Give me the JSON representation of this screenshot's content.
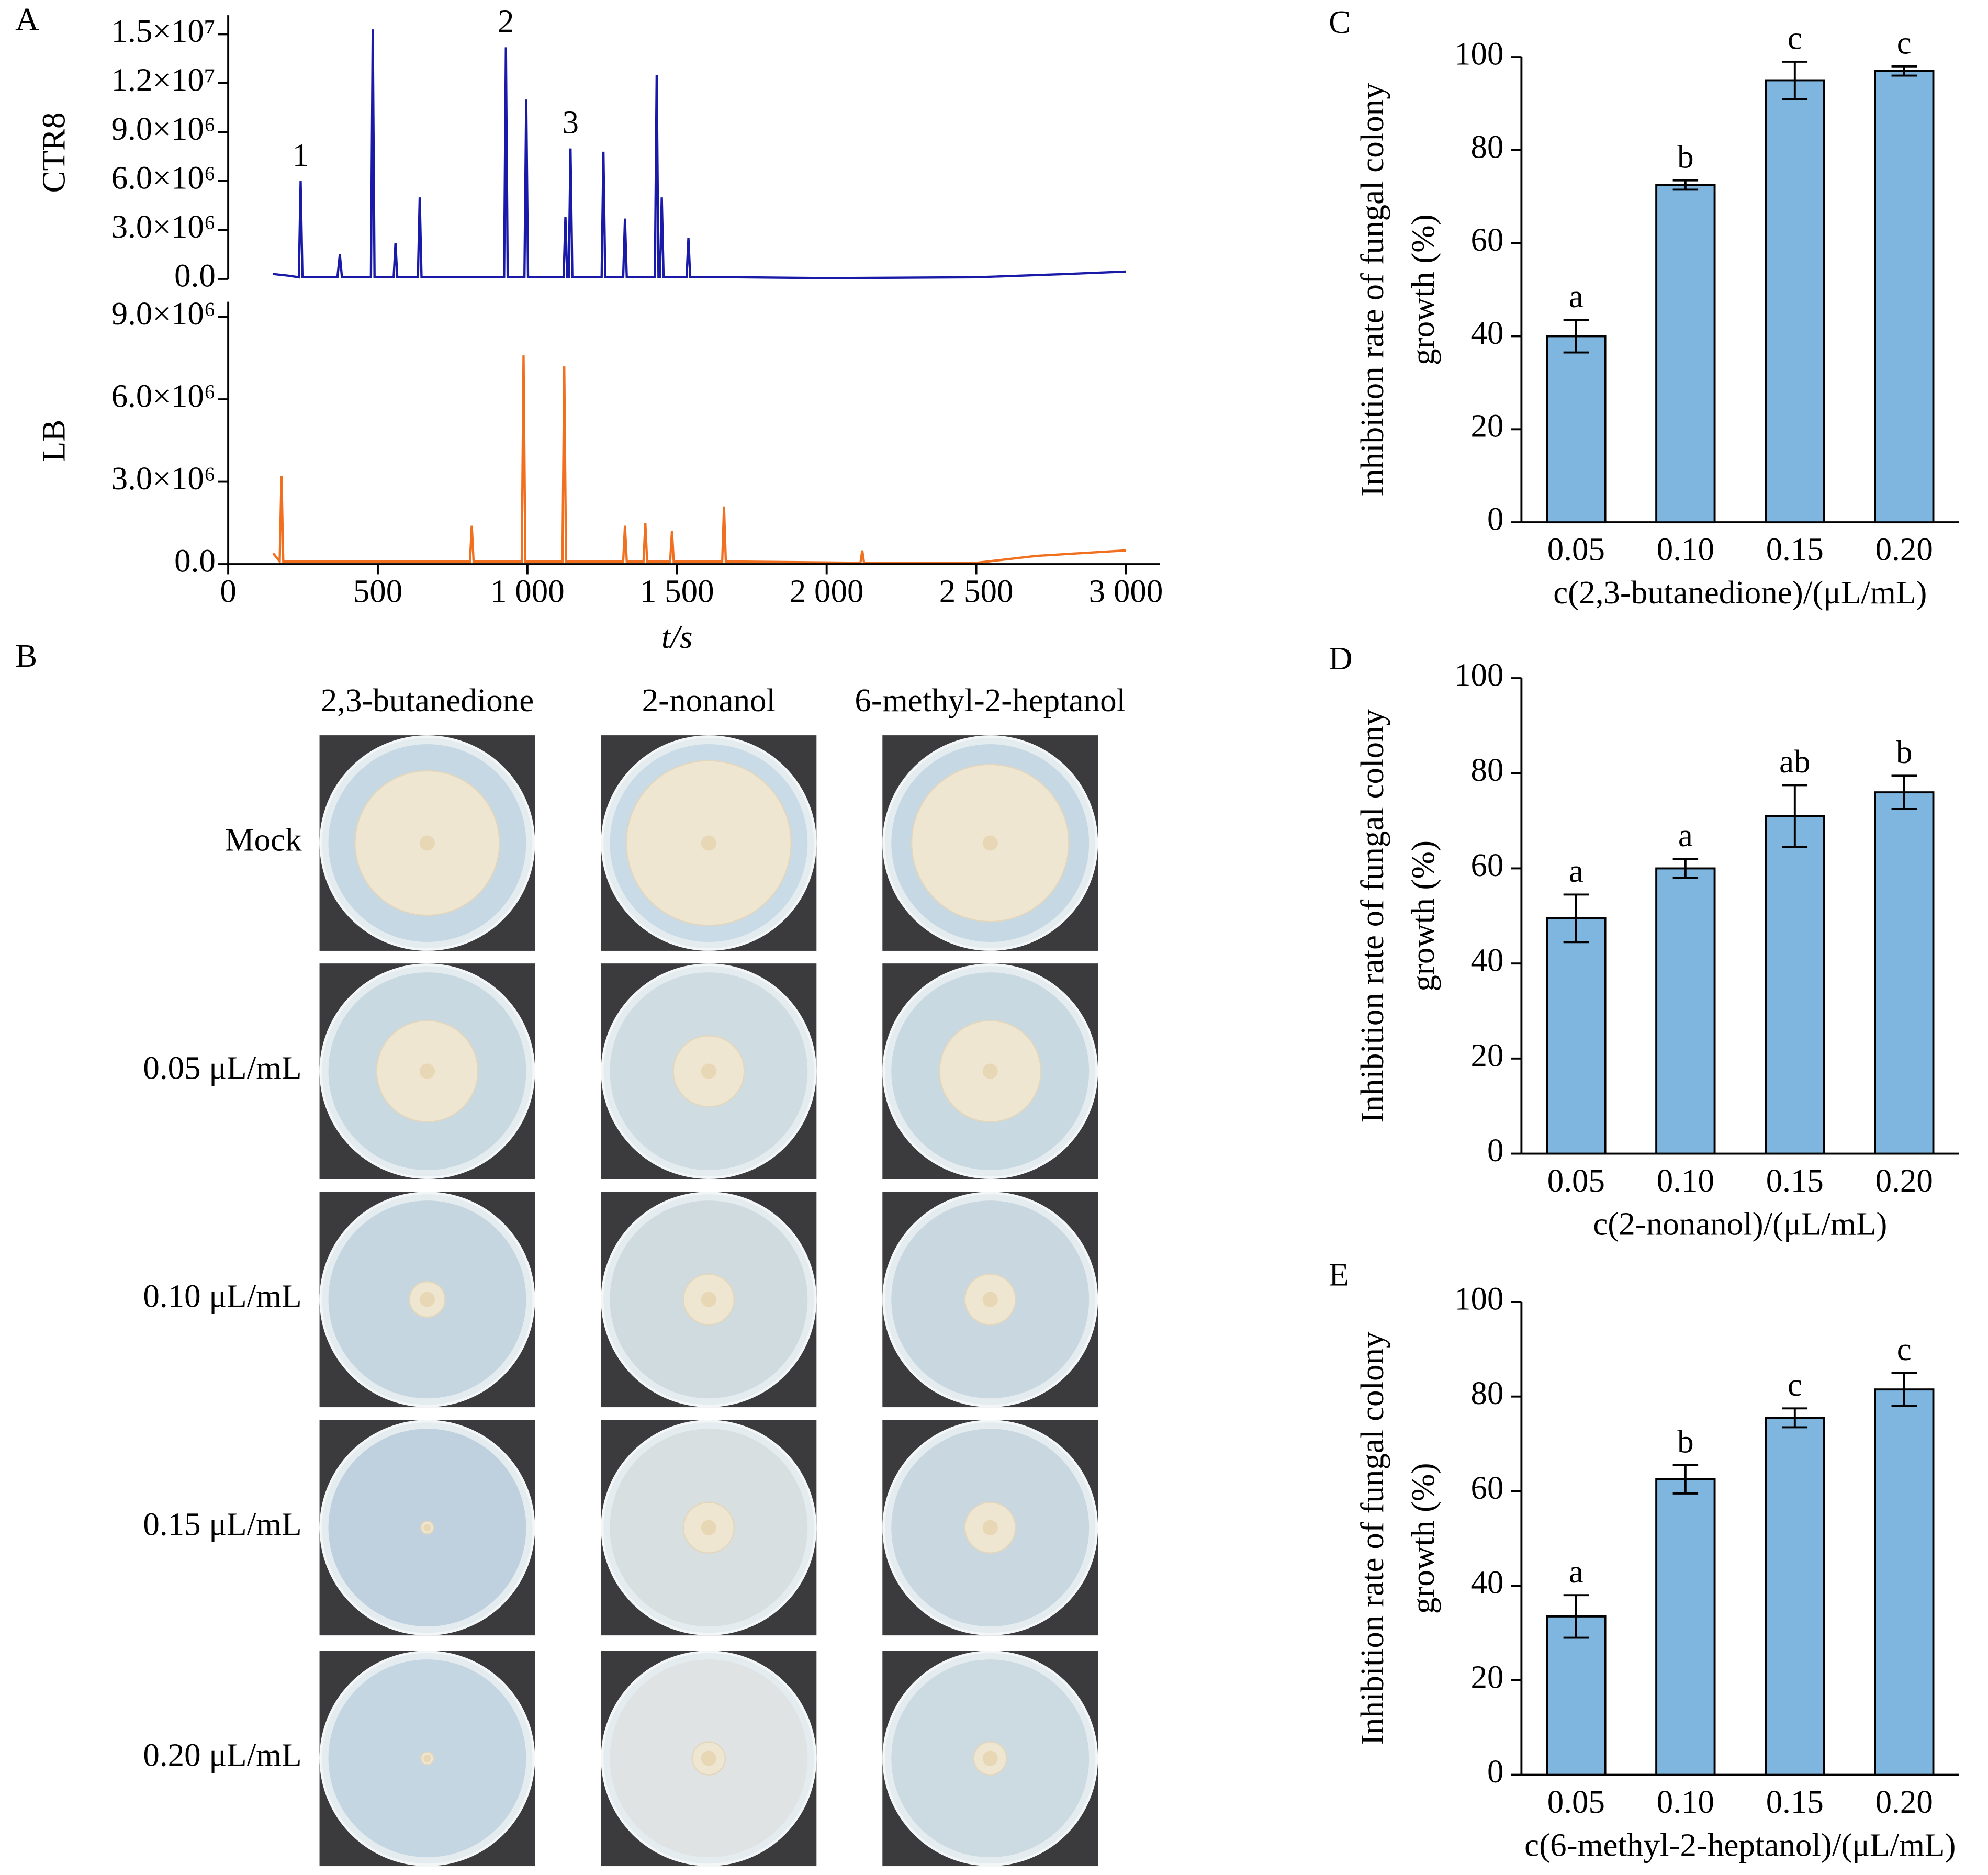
{
  "chart_data": [
    {
      "type": "line",
      "panel": "A",
      "ylabel": "CTR8",
      "color": "#1a1aa8",
      "x": [
        150,
        200,
        236,
        242,
        248,
        365,
        373,
        380,
        477,
        483,
        489,
        553,
        559,
        565,
        634,
        640,
        646,
        922,
        928,
        934,
        990,
        996,
        1002,
        1121,
        1127,
        1133,
        1138,
        1144,
        1150,
        1248,
        1254,
        1260,
        1320,
        1326,
        1332,
        1426,
        1432,
        1438,
        1443,
        1449,
        1455,
        1532,
        1538,
        1544,
        1700,
        2000,
        2500,
        2800,
        3000
      ],
      "values": [
        300000,
        200000,
        100000,
        6000000,
        100000,
        100000,
        1500000,
        100000,
        100000,
        15300000,
        100000,
        100000,
        2200000,
        100000,
        100000,
        5000000,
        100000,
        100000,
        14200000,
        100000,
        100000,
        11000000,
        100000,
        100000,
        3800000,
        100000,
        100000,
        8000000,
        100000,
        100000,
        7800000,
        100000,
        100000,
        3700000,
        100000,
        100000,
        12500000,
        100000,
        100000,
        5000000,
        100000,
        100000,
        2500000,
        100000,
        100000,
        50000,
        100000,
        300000,
        450000
      ],
      "xlim": [
        0,
        3000
      ],
      "ylim": [
        0,
        15500000
      ],
      "yticks": [
        {
          "value": 0,
          "label": "0.0"
        },
        {
          "value": 3000000,
          "label": "3.0×10⁶"
        },
        {
          "value": 6000000,
          "label": "6.0×10⁶"
        },
        {
          "value": 9000000,
          "label": "9.0×10⁶"
        },
        {
          "value": 12000000,
          "label": "1.2×10⁷"
        },
        {
          "value": 15000000,
          "label": "1.5×10⁷"
        }
      ],
      "annotations": [
        {
          "text": "1",
          "x": 242
        },
        {
          "text": "2",
          "x": 928
        },
        {
          "text": "3",
          "x": 1144
        }
      ]
    },
    {
      "type": "line",
      "ylabel": "LB",
      "color": "#f07020",
      "xlabel": "t/s",
      "x": [
        150,
        172,
        178,
        184,
        600,
        808,
        814,
        820,
        981,
        987,
        993,
        1117,
        1123,
        1129,
        1320,
        1326,
        1332,
        1388,
        1394,
        1400,
        1477,
        1483,
        1489,
        1651,
        1657,
        1663,
        2113,
        2119,
        2125,
        2500,
        2700,
        3000
      ],
      "values": [
        400000,
        100000,
        3200000,
        100000,
        100000,
        100000,
        1400000,
        100000,
        100000,
        7600000,
        100000,
        100000,
        7200000,
        100000,
        100000,
        1400000,
        100000,
        100000,
        1500000,
        100000,
        100000,
        1200000,
        100000,
        100000,
        2100000,
        100000,
        50000,
        500000,
        50000,
        50000,
        300000,
        500000
      ],
      "xlim": [
        0,
        3000
      ],
      "ylim": [
        0,
        9000000
      ],
      "xticks": [
        0,
        500,
        {
          "value": 1000,
          "label": "1 000"
        },
        {
          "value": 1500,
          "label": "1 500"
        },
        {
          "value": 2000,
          "label": "2 000"
        },
        {
          "value": 2500,
          "label": "2 500"
        },
        {
          "value": 3000,
          "label": "3 000"
        }
      ],
      "yticks": [
        {
          "value": 0,
          "label": "0.0"
        },
        {
          "value": 3000000,
          "label": "3.0×10⁶"
        },
        {
          "value": 6000000,
          "label": "6.0×10⁶"
        },
        {
          "value": 9000000,
          "label": "9.0×10⁶"
        }
      ]
    },
    {
      "type": "bar",
      "panel": "C",
      "color": "#7eb6e0",
      "categories": [
        "0.05",
        "0.10",
        "0.15",
        "0.20"
      ],
      "values": [
        40,
        72.5,
        95,
        97
      ],
      "errors": [
        3.5,
        1,
        4,
        1
      ],
      "letters": [
        "a",
        "b",
        "c",
        "c"
      ],
      "ylim": [
        0,
        100
      ],
      "yticks": [
        0,
        20,
        40,
        60,
        80,
        100
      ],
      "xlabel": "c(2,3-butanedione)/(μL/mL)",
      "ylabel": [
        "Inhibition rate of fungal colony",
        "growth (%)"
      ]
    },
    {
      "type": "bar",
      "panel": "D",
      "color": "#7eb6e0",
      "categories": [
        "0.05",
        "0.10",
        "0.15",
        "0.20"
      ],
      "values": [
        49.5,
        60,
        71,
        76
      ],
      "errors": [
        5,
        2,
        6.5,
        3.5
      ],
      "letters": [
        "a",
        "a",
        "ab",
        "b"
      ],
      "ylim": [
        0,
        100
      ],
      "yticks": [
        0,
        20,
        40,
        60,
        80,
        100
      ],
      "xlabel": "c(2-nonanol)/(μL/mL)",
      "ylabel": [
        "Inhibition rate of fungal colony",
        "growth (%)"
      ]
    },
    {
      "type": "bar",
      "panel": "E",
      "color": "#7eb6e0",
      "categories": [
        "0.05",
        "0.10",
        "0.15",
        "0.20"
      ],
      "values": [
        33.5,
        62.5,
        75.5,
        81.5
      ],
      "errors": [
        4.5,
        3,
        2,
        3.5
      ],
      "letters": [
        "a",
        "b",
        "c",
        "c"
      ],
      "ylim": [
        0,
        100
      ],
      "yticks": [
        0,
        20,
        40,
        60,
        80,
        100
      ],
      "xlabel": "c(6-methyl-2-heptanol)/(μL/mL)",
      "ylabel": [
        "Inhibition rate of  fungal colony",
        "growth (%)"
      ]
    }
  ],
  "photo_panel": {
    "panel": "B",
    "columns": [
      "2,3-butanedione",
      "2-nonanol",
      "6-methyl-2-heptanol"
    ],
    "rows": [
      "Mock",
      "0.05 μL/mL",
      "0.10 μL/mL",
      "0.15 μL/mL",
      "0.20 μL/mL"
    ]
  }
}
